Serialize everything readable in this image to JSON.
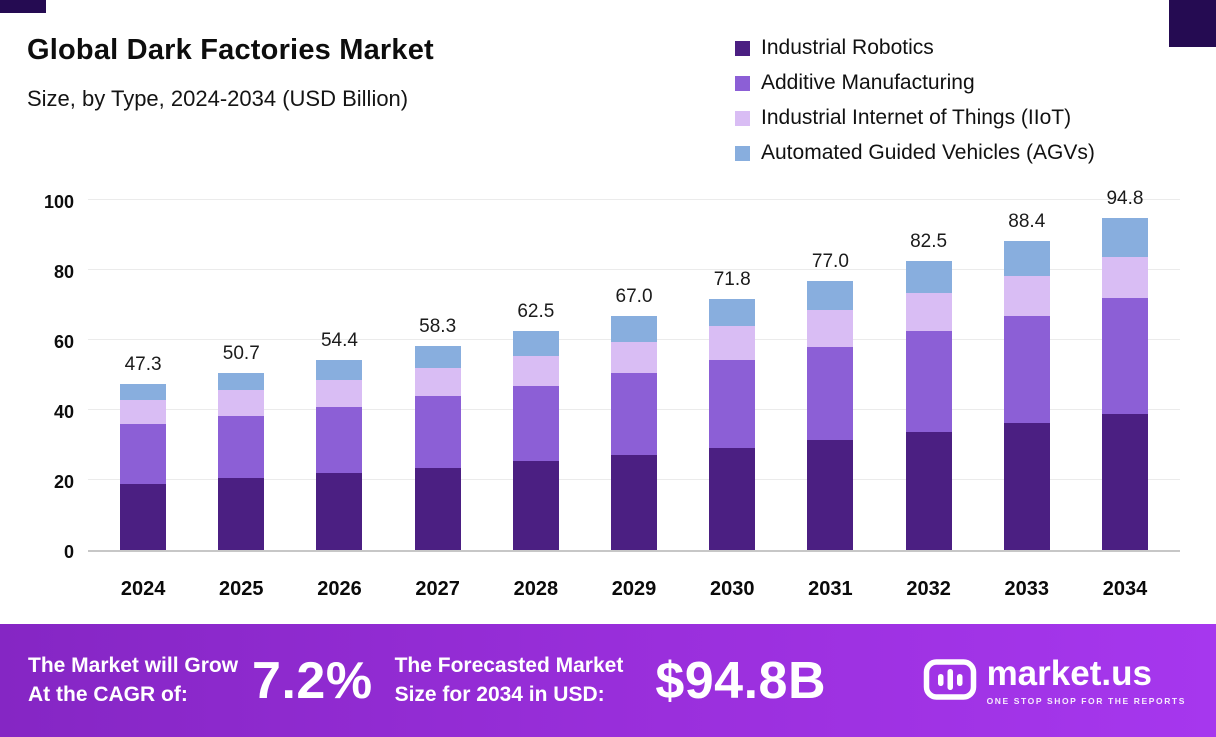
{
  "header": {
    "title": "Global Dark Factories Market",
    "subtitle": "Size, by Type, 2024-2034 (USD Billion)"
  },
  "chart_data": {
    "type": "bar",
    "stacked": true,
    "title": "Global Dark Factories Market Size, by Type, 2024-2034 (USD Billion)",
    "xlabel": "",
    "ylabel": "USD Billion",
    "ylim": [
      0,
      100
    ],
    "yticks": [
      0,
      20,
      40,
      60,
      80,
      100
    ],
    "grid": true,
    "legend_position": "top-right",
    "categories": [
      "2024",
      "2025",
      "2026",
      "2027",
      "2028",
      "2029",
      "2030",
      "2031",
      "2032",
      "2033",
      "2034"
    ],
    "series": [
      {
        "name": "Industrial Robotics",
        "color": "#4b1f82",
        "values": [
          19.0,
          20.5,
          22.0,
          23.5,
          25.3,
          27.2,
          29.2,
          31.5,
          33.8,
          36.2,
          39.0
        ]
      },
      {
        "name": "Additive Manufacturing",
        "color": "#8c5fd6",
        "values": [
          17.0,
          17.7,
          19.0,
          20.5,
          21.7,
          23.3,
          25.0,
          26.5,
          28.7,
          30.8,
          33.0
        ]
      },
      {
        "name": "Industrial Internet of Things (IIoT)",
        "color": "#d9bdf4",
        "values": [
          7.0,
          7.5,
          7.5,
          8.0,
          8.5,
          9.0,
          9.8,
          10.5,
          11.0,
          11.4,
          11.8
        ]
      },
      {
        "name": "Automated Guided Vehicles (AGVs)",
        "color": "#88aede",
        "values": [
          4.3,
          5.0,
          5.9,
          6.3,
          7.0,
          7.5,
          7.8,
          8.5,
          9.0,
          10.0,
          11.0
        ]
      }
    ],
    "totals": [
      "47.3",
      "50.7",
      "54.4",
      "58.3",
      "62.5",
      "67.0",
      "71.8",
      "77.0",
      "82.5",
      "88.4",
      "94.8"
    ]
  },
  "footer": {
    "cagr_label_line1": "The Market will Grow",
    "cagr_label_line2": "At the CAGR of:",
    "cagr_value": "7.2%",
    "forecast_label_line1": "The Forecasted Market",
    "forecast_label_line2": "Size for 2034 in USD:",
    "forecast_value": "$94.8B",
    "brand": "market.us",
    "brand_tagline": "ONE STOP SHOP FOR THE REPORTS",
    "banner_color": "#9a2fdc"
  },
  "accent_color": "#250b52"
}
